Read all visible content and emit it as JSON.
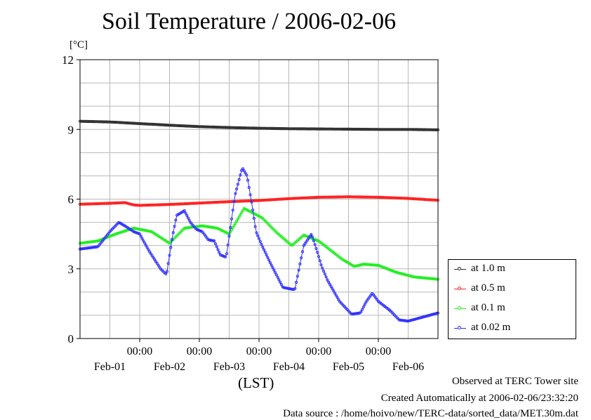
{
  "title": "Soil Temperature / 2006-02-06",
  "unit_label": "[°C]",
  "x_axis_label": "(LST)",
  "footer": {
    "observed": "Observed at TERC Tower site",
    "created": "Created Automatically at 2006-02-06/23:32:20",
    "source": "Data source : /home/hoivo/new/TERC-data/sorted_data/MET.30m.dat"
  },
  "chart_data": {
    "type": "line",
    "title": "Soil Temperature / 2006-02-06",
    "xlabel": "(LST)",
    "ylabel": "[°C]",
    "ylim": [
      0,
      12
    ],
    "yticks": [
      0,
      3,
      6,
      9,
      12
    ],
    "xlim": [
      0,
      6
    ],
    "x_unit": "days since Jan-31 00:00 (LST)",
    "xtick_top_labels": [
      "00:00",
      "00:00",
      "00:00",
      "00:00",
      "00:00"
    ],
    "xtick_bottom_labels": [
      "Feb-01",
      "Feb-02",
      "Feb-03",
      "Feb-04",
      "Feb-05",
      "Feb-06"
    ],
    "grid": true,
    "legend_position": "right, outside plot",
    "series": [
      {
        "name": "at 1.0 m",
        "color": "#303030",
        "x": [
          0,
          0.5,
          1,
          1.5,
          2,
          2.5,
          3,
          3.5,
          4,
          4.5,
          5,
          5.5,
          6
        ],
        "y": [
          9.35,
          9.32,
          9.25,
          9.18,
          9.12,
          9.08,
          9.05,
          9.03,
          9.02,
          9.01,
          9.0,
          9.0,
          8.98
        ]
      },
      {
        "name": "at 0.5 m",
        "color": "#ff2020",
        "x": [
          0,
          0.5,
          0.75,
          0.9,
          1,
          1.5,
          2,
          2.5,
          3,
          3.5,
          4,
          4.5,
          5,
          5.5,
          6
        ],
        "y": [
          5.78,
          5.82,
          5.85,
          5.75,
          5.73,
          5.77,
          5.83,
          5.89,
          5.94,
          6.02,
          6.08,
          6.1,
          6.08,
          6.03,
          5.95
        ]
      },
      {
        "name": "at 0.1 m",
        "color": "#20ee20",
        "x": [
          0,
          0.3,
          0.6,
          0.9,
          1.2,
          1.5,
          1.75,
          2.05,
          2.3,
          2.5,
          2.75,
          3.05,
          3.3,
          3.55,
          3.75,
          4.0,
          4.2,
          4.4,
          4.6,
          4.75,
          5.0,
          5.3,
          5.6,
          6.0
        ],
        "y": [
          4.1,
          4.2,
          4.5,
          4.75,
          4.6,
          4.1,
          4.75,
          4.85,
          4.75,
          4.5,
          5.6,
          5.2,
          4.55,
          4.0,
          4.45,
          4.2,
          3.8,
          3.4,
          3.1,
          3.2,
          3.15,
          2.85,
          2.65,
          2.55
        ]
      },
      {
        "name": "at 0.02 m",
        "color": "#3030ff",
        "x": [
          0,
          0.3,
          0.5,
          0.65,
          0.75,
          0.9,
          1.0,
          1.15,
          1.35,
          1.45,
          1.55,
          1.62,
          1.75,
          1.85,
          1.95,
          2.05,
          2.15,
          2.25,
          2.35,
          2.45,
          2.6,
          2.72,
          2.8,
          2.88,
          2.95,
          3.05,
          3.2,
          3.4,
          3.6,
          3.75,
          3.88,
          3.98,
          4.05,
          4.15,
          4.35,
          4.55,
          4.7,
          4.8,
          4.9,
          5.0,
          5.2,
          5.35,
          5.5,
          6.0
        ],
        "y": [
          3.85,
          3.95,
          4.6,
          5.0,
          4.85,
          4.6,
          4.5,
          3.8,
          3.0,
          2.75,
          4.4,
          5.3,
          5.5,
          5.0,
          4.7,
          4.6,
          4.25,
          4.2,
          3.6,
          3.5,
          6.2,
          7.35,
          7.0,
          5.8,
          4.6,
          4.0,
          3.2,
          2.2,
          2.1,
          4.0,
          4.5,
          3.7,
          3.1,
          2.5,
          1.6,
          1.05,
          1.1,
          1.6,
          1.95,
          1.6,
          1.2,
          0.8,
          0.75,
          1.1
        ]
      }
    ]
  }
}
